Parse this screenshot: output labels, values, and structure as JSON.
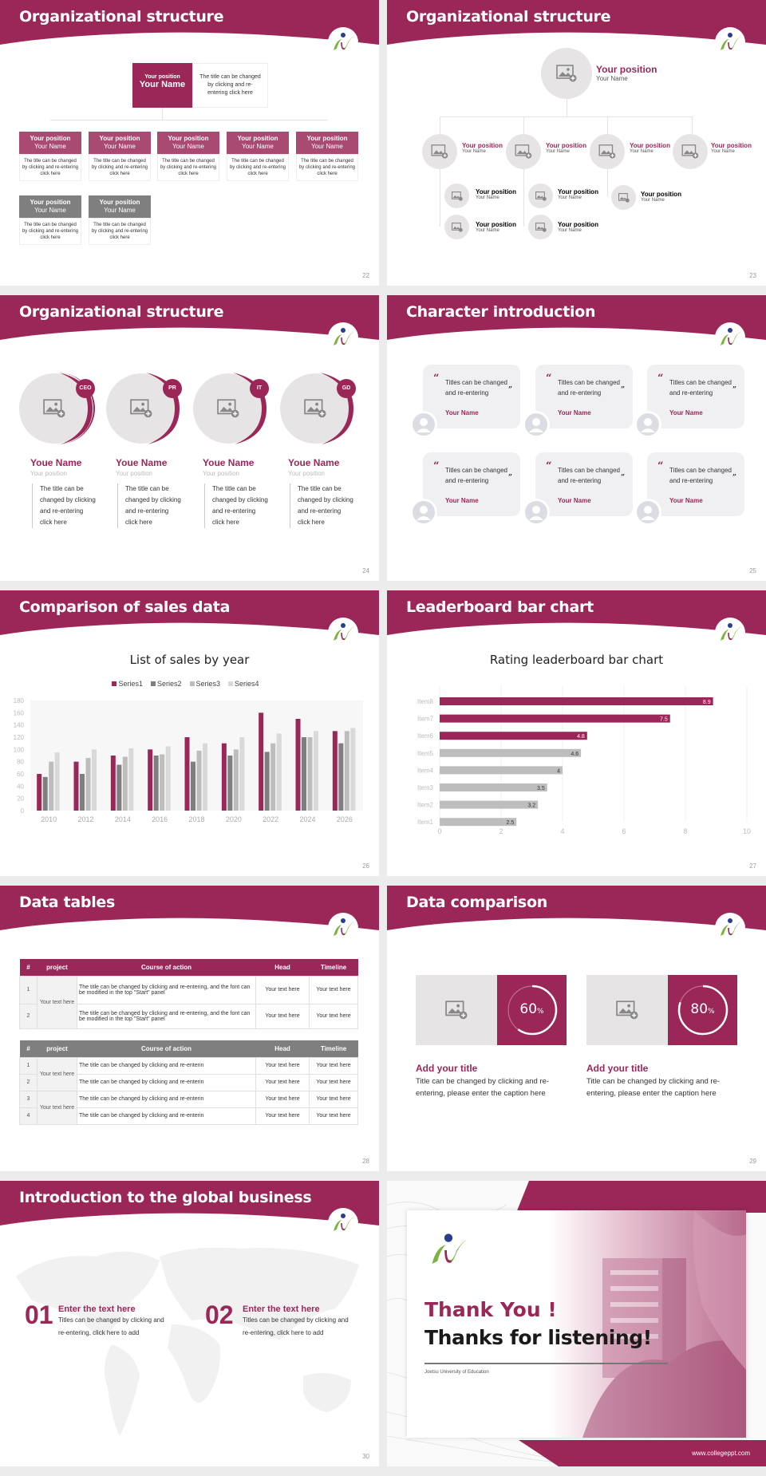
{
  "brand": {
    "primary": "#9b2759",
    "gray_dark": "#7f7f7f",
    "gray_light": "#e6e4e4"
  },
  "slides": {
    "s22": {
      "title": "Organizational structure",
      "page": "22",
      "top": {
        "position": "Your position",
        "name": "Your Name",
        "desc": "The title can be changed by clicking and re-entering click here"
      },
      "boxes": [
        {
          "position": "Your position",
          "name": "Your Name",
          "desc": "The title can be changed by clicking and re-entering click here",
          "color": "#a84a72"
        },
        {
          "position": "Your position",
          "name": "Your Name",
          "desc": "The title can be changed by clicking and re-entering click here",
          "color": "#a84a72"
        },
        {
          "position": "Your position",
          "name": "Your Name",
          "desc": "The title can be changed by clicking and re-entering click here",
          "color": "#a84a72"
        },
        {
          "position": "Your position",
          "name": "Your Name",
          "desc": "The title can be changed by clicking and re-entering click here",
          "color": "#a84a72"
        },
        {
          "position": "Your position",
          "name": "Your Name",
          "desc": "The title can be changed by clicking and re-entering click here",
          "color": "#a84a72"
        },
        {
          "position": "Your position",
          "name": "Your Name",
          "desc": "The title can be changed by clicking and re-entering click here",
          "color": "#7f7f7f"
        },
        {
          "position": "Your position",
          "name": "Your Name",
          "desc": "The title can be changed by clicking and re-entering click here",
          "color": "#7f7f7f"
        }
      ]
    },
    "s23": {
      "title": "Organizational structure",
      "page": "23",
      "top": {
        "position": "Your position",
        "name": "Your Name"
      },
      "level2": [
        {
          "position": "Your position",
          "name": "Your Name"
        },
        {
          "position": "Your position",
          "name": "Your Name"
        },
        {
          "position": "Your position",
          "name": "Your Name"
        },
        {
          "position": "Your position",
          "name": "Your Name"
        }
      ],
      "level3": [
        {
          "position": "Your position",
          "name": "Your Name"
        },
        {
          "position": "Your position",
          "name": "Your Name"
        },
        {
          "position": "Your position",
          "name": "Your Name"
        },
        {
          "position": "Your position",
          "name": "Your Name"
        },
        {
          "position": "Your position",
          "name": "Your Name"
        }
      ]
    },
    "s24": {
      "title": "Organizational structure",
      "page": "24",
      "people": [
        {
          "badge": "CEO",
          "name": "Youe Name",
          "position": "Your position",
          "desc": "The title can be changed by clicking and re-entering click here"
        },
        {
          "badge": "PR",
          "name": "Youe Name",
          "position": "Your position",
          "desc": "The title can be changed by clicking and re-entering click here"
        },
        {
          "badge": "IT",
          "name": "Youe Name",
          "position": "Your position",
          "desc": "The title can be changed by clicking and re-entering click here"
        },
        {
          "badge": "GD",
          "name": "Youe Name",
          "position": "Your position",
          "desc": "The title can be changed by clicking and re-entering click here"
        }
      ]
    },
    "s25": {
      "title": "Character introduction",
      "page": "25",
      "quotes": [
        {
          "text": "Titles can be changed and re-entering",
          "name": "Your Name"
        },
        {
          "text": "Titles can be changed and re-entering",
          "name": "Your Name"
        },
        {
          "text": "Titles can be changed and re-entering",
          "name": "Your Name"
        },
        {
          "text": "Titles can be changed and re-entering",
          "name": "Your Name"
        },
        {
          "text": "Titles can be changed and re-entering",
          "name": "Your Name"
        },
        {
          "text": "Titles can be changed and re-entering",
          "name": "Your Name"
        }
      ],
      "open_quote": "“",
      "close_quote": "”"
    },
    "s26": {
      "title": "Comparison of sales data",
      "page": "26"
    },
    "s27": {
      "title": "Leaderboard bar chart",
      "page": "27"
    },
    "s28": {
      "title": "Data tables",
      "page": "28",
      "headers": [
        "#",
        "project",
        "Course of action",
        "Head",
        "Timeline"
      ],
      "table1": {
        "project": "Your text here",
        "rows": [
          {
            "n": "1",
            "action": "The title can be changed by clicking and re-entering, and the font can be modified in the top \"Start\" panel",
            "head": "Your text here",
            "timeline": "Your text here"
          },
          {
            "n": "2",
            "action": "The title can be changed by clicking and re-entering, and the font can be modified in the top \"Start\" panel",
            "head": "Your text here",
            "timeline": "Your text here"
          }
        ]
      },
      "table2": {
        "projects": [
          "Your text here",
          "Your text here"
        ],
        "rows": [
          {
            "n": "1",
            "action": "The title can be changed by clicking and re-enterin",
            "head": "Your text here",
            "timeline": "Your text here"
          },
          {
            "n": "2",
            "action": "The title can be changed by clicking and re-enterin",
            "head": "Your text here",
            "timeline": "Your text here"
          },
          {
            "n": "3",
            "action": "The title can be changed by clicking and re-enterin",
            "head": "Your text here",
            "timeline": "Your text here"
          },
          {
            "n": "4",
            "action": "The title can be changed by clicking and re-enterin",
            "head": "Your text here",
            "timeline": "Your text here"
          }
        ]
      }
    },
    "s29": {
      "title": "Data comparison",
      "page": "29",
      "items": [
        {
          "percent": "60",
          "unit": "%",
          "value": 60,
          "title": "Add your title",
          "desc": "Title can be changed by clicking and re-entering, please enter the caption here"
        },
        {
          "percent": "80",
          "unit": "%",
          "value": 80,
          "title": "Add your title",
          "desc": "Title can be changed by clicking and re-entering, please enter the caption here"
        }
      ]
    },
    "s30": {
      "title": "Introduction to the global business",
      "page": "30",
      "items": [
        {
          "num": "01",
          "title": "Enter the text here",
          "desc": "Titles can be changed by clicking and re-entering, click here to add"
        },
        {
          "num": "02",
          "title": "Enter the text here",
          "desc": "Titles can be changed by clicking and re-entering, click here to add"
        }
      ]
    },
    "s31": {
      "thank": "Thank You !",
      "thanks": "Thanks for listening!",
      "university": "Joetsu University of Education",
      "website": "www.collegeppt.com"
    }
  },
  "chart_data": [
    {
      "type": "bar",
      "title": "List of sales by year",
      "categories": [
        "2010",
        "2012",
        "2014",
        "2016",
        "2018",
        "2020",
        "2022",
        "2024",
        "2026"
      ],
      "series": [
        {
          "name": "Series1",
          "color": "#9b2759",
          "values": [
            60,
            80,
            90,
            100,
            120,
            110,
            160,
            150,
            130
          ]
        },
        {
          "name": "Series2",
          "color": "#7f7f7f",
          "values": [
            55,
            60,
            75,
            90,
            80,
            90,
            96,
            120,
            110
          ]
        },
        {
          "name": "Series3",
          "color": "#bdbdbd",
          "values": [
            80,
            86,
            88,
            92,
            98,
            100,
            110,
            120,
            130
          ]
        },
        {
          "name": "Series4",
          "color": "#d9d9d9",
          "values": [
            95,
            100,
            102,
            105,
            110,
            120,
            126,
            130,
            135
          ]
        }
      ],
      "xlabel": "",
      "ylabel": "",
      "ylim": [
        0,
        180
      ],
      "yticks": [
        0,
        20,
        40,
        60,
        80,
        100,
        120,
        140,
        160,
        180
      ],
      "legend_position": "top"
    },
    {
      "type": "bar",
      "orientation": "horizontal",
      "title": "Rating leaderboard bar chart",
      "categories": [
        "Item8",
        "Item7",
        "Item6",
        "Item5",
        "Item4",
        "Item3",
        "Item2",
        "Item1"
      ],
      "values": [
        8.9,
        7.5,
        4.8,
        4.6,
        4,
        3.5,
        3.2,
        2.5
      ],
      "labels": [
        "8.9",
        "7.5",
        "4.8",
        "4.6",
        "4",
        "3.5",
        "3.2",
        "2.5"
      ],
      "highlight_count": 3,
      "xlim": [
        0,
        10
      ],
      "xticks": [
        "0",
        "2",
        "4",
        "6",
        "8",
        "10"
      ],
      "grid": true
    }
  ]
}
